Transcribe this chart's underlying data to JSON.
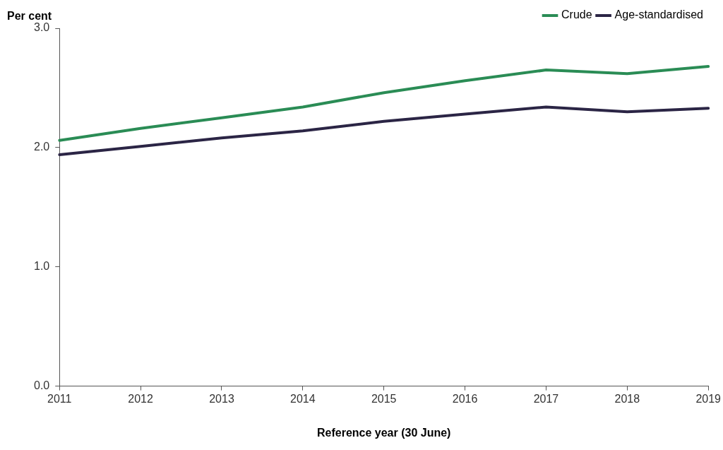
{
  "chart_data": {
    "type": "line",
    "xlabel": "Reference year (30 June)",
    "ylabel": "Per cent",
    "categories": [
      "2011",
      "2012",
      "2013",
      "2014",
      "2015",
      "2016",
      "2017",
      "2018",
      "2019"
    ],
    "series": [
      {
        "name": "Crude",
        "color": "#2a8c55",
        "values": [
          2.06,
          2.16,
          2.25,
          2.34,
          2.46,
          2.56,
          2.65,
          2.62,
          2.68
        ]
      },
      {
        "name": "Age-standardised",
        "color": "#2b2545",
        "values": [
          1.94,
          2.01,
          2.08,
          2.14,
          2.22,
          2.28,
          2.34,
          2.3,
          2.33
        ]
      }
    ],
    "ylim": [
      0,
      3
    ],
    "yticks": [
      {
        "value": 0,
        "label": "0.0"
      },
      {
        "value": 1,
        "label": "1.0"
      },
      {
        "value": 2,
        "label": "2.0"
      },
      {
        "value": 3,
        "label": "3.0"
      }
    ],
    "grid": false,
    "legend": "top right",
    "marker": "none",
    "line_style": "solid"
  }
}
